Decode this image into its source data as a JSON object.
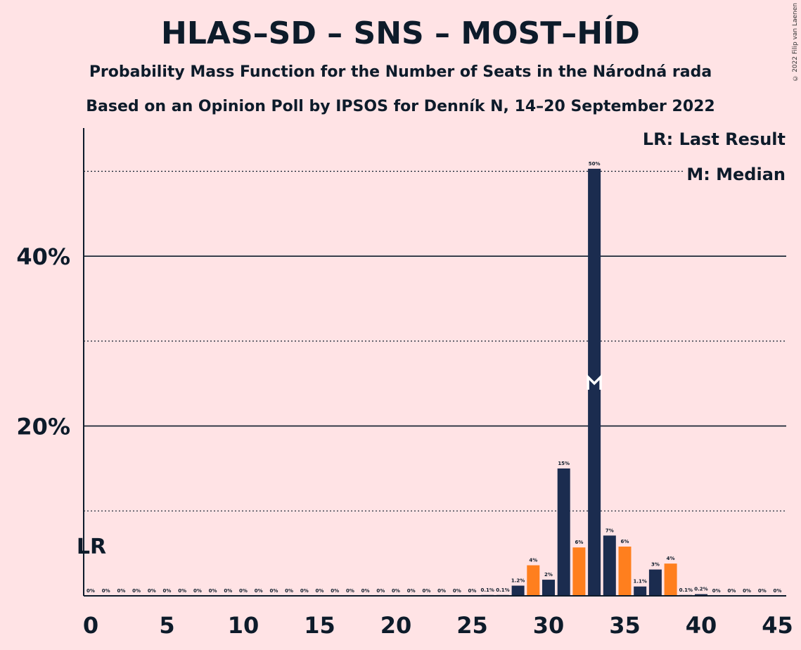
{
  "copyright": "© 2022 Filip van Laenen",
  "colors": {
    "background": "#ffe3e5",
    "dark": "#1b2c4f",
    "orange": "#ff7f1e",
    "text": "#0d1b2a"
  },
  "chart_data": {
    "type": "bar",
    "title": "HLAS–SD – SNS – MOST–HÍD",
    "subtitle": "Probability Mass Function for the Number of Seats in the Národná rada",
    "subtitle2": "Based on an Opinion Poll by IPSOS for Denník N, 14–20 September 2022",
    "x": [
      0,
      1,
      2,
      3,
      4,
      5,
      6,
      7,
      8,
      9,
      10,
      11,
      12,
      13,
      14,
      15,
      16,
      17,
      18,
      19,
      20,
      21,
      22,
      23,
      24,
      25,
      26,
      27,
      28,
      29,
      30,
      31,
      32,
      33,
      34,
      35,
      36,
      37,
      38,
      39,
      40,
      41,
      42,
      43,
      44,
      45
    ],
    "values": [
      0,
      0,
      0,
      0,
      0,
      0,
      0,
      0,
      0,
      0,
      0,
      0,
      0,
      0,
      0,
      0,
      0,
      0,
      0,
      0,
      0,
      0,
      0,
      0,
      0,
      0,
      0.1,
      0.1,
      1.2,
      3.6,
      1.9,
      15,
      5.7,
      50.3,
      7.1,
      5.8,
      1.1,
      3.1,
      3.8,
      0.1,
      0.2,
      0,
      0,
      0,
      0,
      0
    ],
    "value_labels": [
      "0%",
      "0%",
      "0%",
      "0%",
      "0%",
      "0%",
      "0%",
      "0%",
      "0%",
      "0%",
      "0%",
      "0%",
      "0%",
      "0%",
      "0%",
      "0%",
      "0%",
      "0%",
      "0%",
      "0%",
      "0%",
      "0%",
      "0%",
      "0%",
      "0%",
      "0%",
      "0.1%",
      "0.1%",
      "1.2%",
      "4%",
      "2%",
      "15%",
      "6%",
      "50%",
      "7%",
      "6%",
      "1.1%",
      "3%",
      "4%",
      "0.1%",
      "0.2%",
      "0%",
      "0%",
      "0%",
      "0%",
      "0%"
    ],
    "bar_colors": [
      "dark",
      "dark",
      "dark",
      "dark",
      "dark",
      "dark",
      "dark",
      "dark",
      "dark",
      "dark",
      "dark",
      "dark",
      "dark",
      "dark",
      "dark",
      "dark",
      "dark",
      "dark",
      "dark",
      "dark",
      "dark",
      "dark",
      "dark",
      "dark",
      "dark",
      "dark",
      "dark",
      "dark",
      "dark",
      "orange",
      "dark",
      "dark",
      "orange",
      "dark",
      "dark",
      "orange",
      "dark",
      "dark",
      "orange",
      "dark",
      "dark",
      "dark",
      "dark",
      "dark",
      "dark",
      "dark"
    ],
    "x_ticks": [
      0,
      5,
      10,
      15,
      20,
      25,
      30,
      35,
      40,
      45
    ],
    "y_ticks": [
      {
        "value": 20,
        "label": "20%"
      },
      {
        "value": 40,
        "label": "40%"
      }
    ],
    "dotted_lines": [
      10,
      30,
      50
    ],
    "ylim": [
      0,
      55
    ],
    "xlim": [
      0,
      45
    ],
    "last_result": {
      "seat": 0,
      "label": "LR"
    },
    "median": {
      "seat": 33,
      "label": "M"
    },
    "legend": {
      "lr": "LR: Last Result",
      "median": "M: Median",
      "position": "top-right"
    }
  }
}
